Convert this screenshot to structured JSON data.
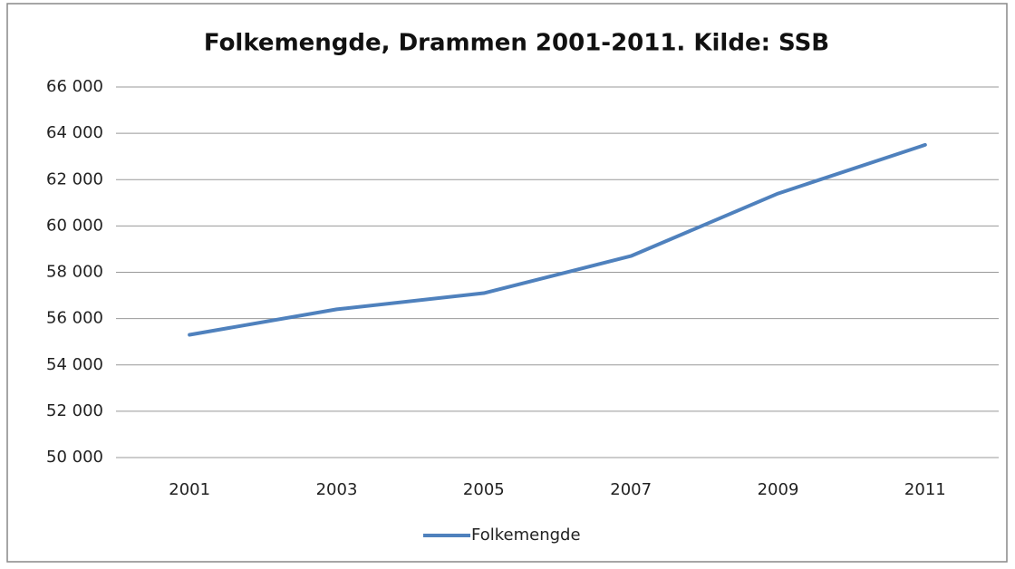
{
  "chart_data": {
    "type": "line",
    "title": "Folkemengde, Drammen 2001-2011. Kilde: SSB",
    "categories": [
      "2001",
      "2003",
      "2005",
      "2007",
      "2009",
      "2011"
    ],
    "series": [
      {
        "name": "Folkemengde",
        "color": "#4f81bd",
        "values": [
          55300,
          56400,
          57100,
          58700,
          61400,
          63500
        ]
      }
    ],
    "ylim": [
      50000,
      66000
    ],
    "yticks": [
      {
        "value": 50000,
        "label": "50 000"
      },
      {
        "value": 52000,
        "label": "52 000"
      },
      {
        "value": 54000,
        "label": "54 000"
      },
      {
        "value": 56000,
        "label": "56 000"
      },
      {
        "value": 58000,
        "label": "58 000"
      },
      {
        "value": 60000,
        "label": "60 000"
      },
      {
        "value": 62000,
        "label": "62 000"
      },
      {
        "value": 64000,
        "label": "64 000"
      },
      {
        "value": 66000,
        "label": "66 000"
      }
    ],
    "grid": true,
    "legend": "bottom"
  }
}
